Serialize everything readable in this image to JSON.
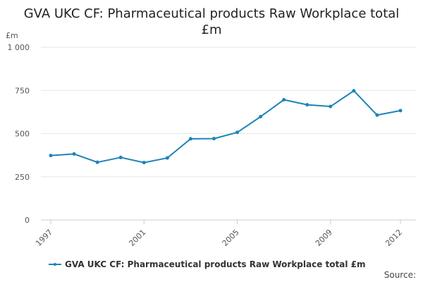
{
  "chart_data": {
    "type": "line",
    "title_lines": [
      "GVA UKC CF: Pharmaceutical products Raw Workplace total",
      "£m"
    ],
    "unit_label": "£m",
    "x": [
      "1997",
      "1998",
      "1999",
      "2000",
      "2001",
      "2002",
      "2003",
      "2004",
      "2005",
      "2006",
      "2007",
      "2008",
      "2009",
      "2010",
      "2011",
      "2012"
    ],
    "x_tick_labels": [
      "1997",
      "2001",
      "2005",
      "2009",
      "2012"
    ],
    "y_tick_labels": [
      "0",
      "250",
      "500",
      "750",
      "1 000"
    ],
    "ylim": [
      0,
      1000
    ],
    "series": [
      {
        "name": "GVA UKC CF: Pharmaceutical products Raw Workplace total £m",
        "values": [
          373,
          382,
          334,
          362,
          332,
          359,
          470,
          471,
          507,
          598,
          696,
          667,
          657,
          748,
          607,
          633
        ]
      }
    ],
    "grid": "horizontal",
    "legend_position": "bottom-left",
    "colors": {
      "series": "#1f83b7",
      "grid": "#e6e6e6",
      "axis": "#cccccc"
    }
  },
  "source_label": "Source:"
}
